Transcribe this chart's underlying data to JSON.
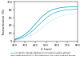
{
  "title": "",
  "xlabel": "λ (nm)",
  "ylabel": "Transmission (%)",
  "xlim": [
    200,
    800
  ],
  "ylim": [
    0,
    100
  ],
  "xticks": [
    200,
    300,
    400,
    500,
    600,
    700,
    800
  ],
  "yticks": [
    0,
    20,
    40,
    60,
    80,
    100
  ],
  "curve1_color": "#a8ddf0",
  "curve2_color": "#40b8d0",
  "curve3_color": "#20a0c0",
  "curve1_style": "--",
  "curve2_style": "-",
  "curve3_style": "-",
  "legend1": "0.08 density aerogel obtained by hydrolysis in a basic medium",
  "legend2": "0.08 density aerogel obtained by the double catalysis process.",
  "legend3": "Aerogel with density 0.058 obtained by the double catalysis process.",
  "background_color": "#ffffff",
  "figsize": [
    1.0,
    0.74
  ],
  "dpi": 100
}
